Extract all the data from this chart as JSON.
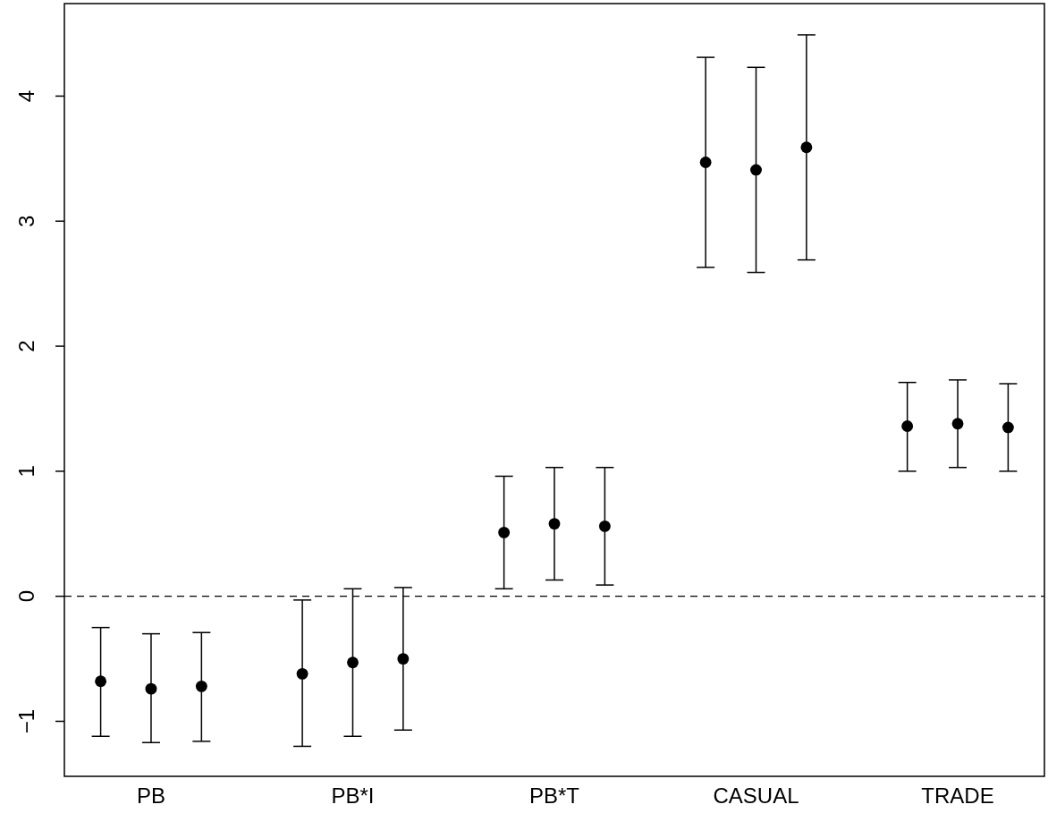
{
  "chart_data": {
    "type": "scatter",
    "categories": [
      null,
      "PB",
      null,
      null,
      null,
      "PB*I",
      null,
      null,
      null,
      "PB*T",
      null,
      null,
      null,
      "CASUAL",
      null,
      null,
      null,
      "TRADE",
      null
    ],
    "values": [
      -0.68,
      -0.74,
      -0.72,
      null,
      -0.62,
      -0.53,
      -0.5,
      null,
      0.51,
      0.58,
      0.56,
      null,
      3.47,
      3.41,
      3.59,
      null,
      1.36,
      1.38,
      1.35
    ],
    "errors": [
      [
        -1.12,
        -0.25
      ],
      [
        -1.17,
        -0.3
      ],
      [
        -1.16,
        -0.29
      ],
      null,
      [
        -1.2,
        -0.03
      ],
      [
        -1.12,
        0.06
      ],
      [
        -1.07,
        0.07
      ],
      null,
      [
        0.06,
        0.96
      ],
      [
        0.13,
        1.03
      ],
      [
        0.09,
        1.03
      ],
      null,
      [
        2.63,
        4.31
      ],
      [
        2.59,
        4.23
      ],
      [
        2.69,
        4.49
      ],
      null,
      [
        1.0,
        1.71
      ],
      [
        1.03,
        1.73
      ],
      [
        1.0,
        1.7
      ]
    ],
    "color": "#000000",
    "marker": "circle",
    "ylim": [
      -1.44,
      4.74
    ],
    "yticks": [
      {
        "value": -1,
        "label": "−1"
      },
      0,
      1,
      2,
      3,
      4
    ],
    "ref_lines": [
      {
        "axis": "y",
        "value": 0,
        "line_style": "dashed",
        "color": "#000000"
      }
    ],
    "grid": false
  }
}
